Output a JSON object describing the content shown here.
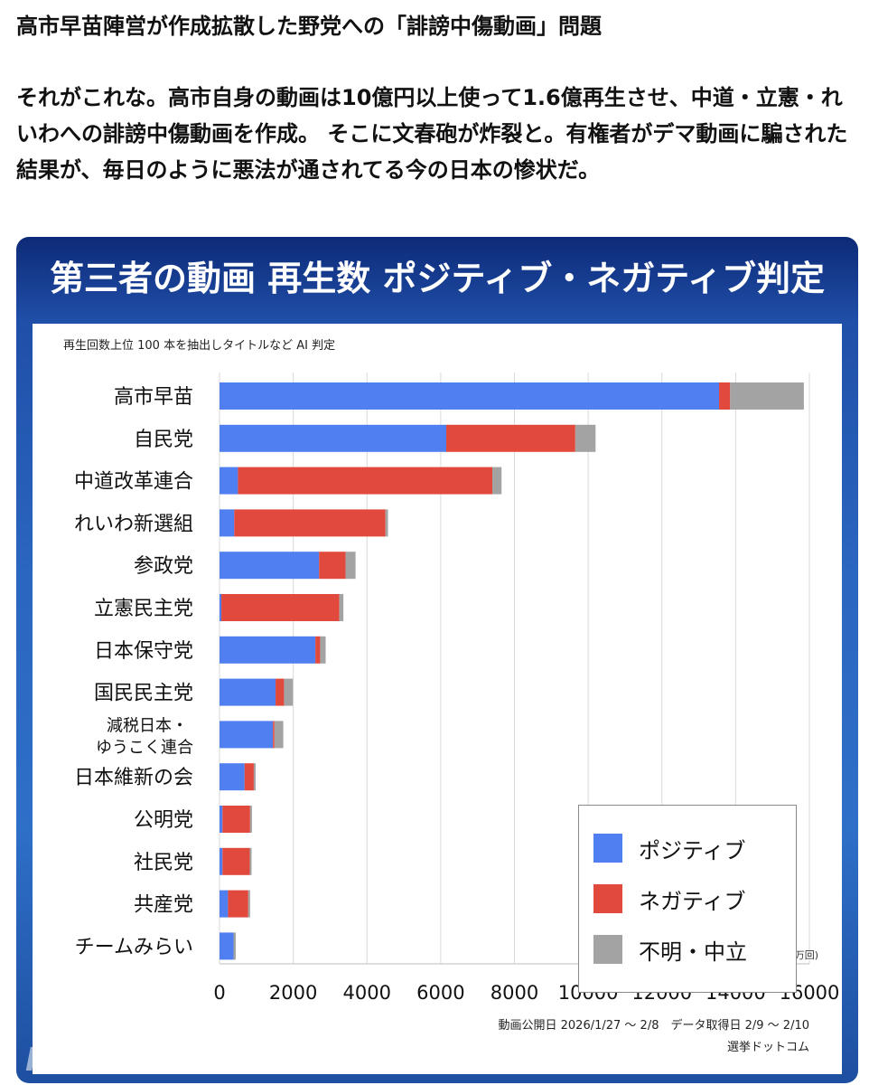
{
  "post": {
    "title": "高市早苗陣営が作成拡散した野党への「誹謗中傷動画」問題",
    "body": "それがこれな。高市自身の動画は10億円以上使って1.6億再生させ、中道・立憲・れいわへの誹謗中傷動画を作成。 そこに文春砲が炸裂と。有権者がデマ動画に騙された結果が、毎日のように悪法が通されてる今の日本の惨状だ。"
  },
  "panel": {
    "title": "第三者の動画 再生数 ポジティブ・ネガティブ判定",
    "logo_text": "NHK"
  },
  "colors": {
    "positive": "#4f7ff0",
    "negative": "#e2493d",
    "neutral": "#a3a3a3",
    "panel_dark": "#0e2a78",
    "panel_light": "#2e6fc8"
  },
  "chart_data": {
    "type": "bar",
    "orientation": "horizontal",
    "stacked": true,
    "subtitle": "再生回数上位 100 本を抽出しタイトルなど AI 判定",
    "unit_label": "(万回)",
    "categories": [
      "高市早苗",
      "自民党",
      "中道改革連合",
      "れいわ新選組",
      "参政党",
      "立憲民主党",
      "日本保守党",
      "国民民主党",
      "減税日本・ゆうこく連合",
      "日本維新の会",
      "公明党",
      "社民党",
      "共産党",
      "チームみらい"
    ],
    "category_lines": [
      [
        "高市早苗"
      ],
      [
        "自民党"
      ],
      [
        "中道改革連合"
      ],
      [
        "れいわ新選組"
      ],
      [
        "参政党"
      ],
      [
        "立憲民主党"
      ],
      [
        "日本保守党"
      ],
      [
        "国民民主党"
      ],
      [
        "減税日本・",
        "ゆうこく連合"
      ],
      [
        "日本維新の会"
      ],
      [
        "公明党"
      ],
      [
        "社民党"
      ],
      [
        "共産党"
      ],
      [
        "チームみらい"
      ]
    ],
    "series": [
      {
        "name": "ポジティブ",
        "color": "#4f7ff0",
        "values": [
          13550,
          6150,
          500,
          400,
          2700,
          50,
          2600,
          1520,
          1450,
          680,
          80,
          80,
          230,
          380
        ]
      },
      {
        "name": "ネガティブ",
        "color": "#e2493d",
        "values": [
          300,
          3500,
          6900,
          4100,
          720,
          3200,
          130,
          230,
          40,
          250,
          750,
          740,
          550,
          0
        ]
      },
      {
        "name": "不明・中立",
        "color": "#a3a3a3",
        "values": [
          2000,
          550,
          250,
          70,
          270,
          110,
          150,
          240,
          240,
          50,
          50,
          50,
          50,
          60
        ]
      }
    ],
    "xlim": [
      0,
      16000
    ],
    "xticks": [
      "0",
      "2000",
      "4000",
      "6000",
      "8000",
      "10000",
      "12000",
      "14000",
      "16000"
    ],
    "grid": true,
    "legend_position": "bottom-right",
    "notes": [
      "動画公開日 2026/1/27 ～ 2/8　データ取得日 2/9 ～ 2/10",
      "選挙ドットコム"
    ]
  }
}
